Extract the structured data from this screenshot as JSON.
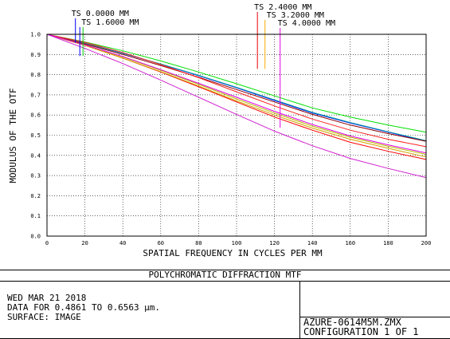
{
  "chart_data": {
    "type": "line",
    "title": "POLYCHROMATIC DIFFRACTION MTF",
    "xlabel": "SPATIAL FREQUENCY IN CYCLES PER MM",
    "ylabel": "MODULUS OF THE OTF",
    "xlim": [
      0,
      200
    ],
    "ylim": [
      0,
      1
    ],
    "xticks": [
      "0",
      "20",
      "40",
      "60",
      "80",
      "100",
      "120",
      "140",
      "160",
      "180",
      "200"
    ],
    "yticks": [
      "0.0",
      "0.1",
      "0.2",
      "0.3",
      "0.4",
      "0.5",
      "0.6",
      "0.7",
      "0.8",
      "0.9",
      "1.0"
    ],
    "grid": true,
    "fields": [
      {
        "name": "TS 0.0000 MM",
        "color": "#0000ff",
        "marker_x": 15
      },
      {
        "name": "TS 1.6000 MM",
        "color": "#00c800",
        "marker_x": 19
      },
      {
        "name": "TS 2.4000 MM",
        "color": "#e60000",
        "marker_x": 111
      },
      {
        "name": "TS 3.2000 MM",
        "color": "#ffaa00",
        "marker_x": 115
      },
      {
        "name": "TS 4.0000 MM",
        "color": "#e000e0",
        "marker_x": 123
      }
    ],
    "x": [
      0,
      20,
      40,
      60,
      80,
      100,
      120,
      140,
      160,
      180,
      200
    ],
    "series": [
      {
        "color": "#0000ff",
        "values": [
          1.0,
          0.955,
          0.905,
          0.852,
          0.795,
          0.735,
          0.672,
          0.61,
          0.56,
          0.515,
          0.47
        ]
      },
      {
        "color": "#00a0a0",
        "values": [
          1.0,
          0.955,
          0.906,
          0.853,
          0.797,
          0.737,
          0.675,
          0.613,
          0.563,
          0.517,
          0.473
        ]
      },
      {
        "color": "#00e000",
        "values": [
          1.0,
          0.962,
          0.918,
          0.868,
          0.813,
          0.755,
          0.695,
          0.635,
          0.59,
          0.55,
          0.515
        ]
      },
      {
        "color": "#8b0000",
        "values": [
          1.0,
          0.952,
          0.9,
          0.845,
          0.787,
          0.726,
          0.665,
          0.603,
          0.55,
          0.508,
          0.47
        ]
      },
      {
        "color": "#ff0000",
        "values": [
          1.0,
          0.945,
          0.882,
          0.813,
          0.74,
          0.665,
          0.59,
          0.525,
          0.465,
          0.42,
          0.38
        ]
      },
      {
        "color": "#ff2020",
        "values": [
          1.0,
          0.96,
          0.91,
          0.85,
          0.785,
          0.715,
          0.645,
          0.58,
          0.525,
          0.48,
          0.443
        ]
      },
      {
        "color": "#d4a000",
        "values": [
          1.0,
          0.945,
          0.882,
          0.815,
          0.744,
          0.67,
          0.6,
          0.535,
          0.48,
          0.435,
          0.392
        ]
      },
      {
        "color": "#b8b800",
        "values": [
          1.0,
          0.948,
          0.888,
          0.822,
          0.752,
          0.68,
          0.61,
          0.545,
          0.49,
          0.445,
          0.405
        ]
      },
      {
        "color": "#e000e0",
        "values": [
          1.0,
          0.948,
          0.89,
          0.825,
          0.757,
          0.688,
          0.618,
          0.553,
          0.496,
          0.452,
          0.412
        ]
      },
      {
        "color": "#d020d0",
        "values": [
          1.0,
          0.93,
          0.855,
          0.773,
          0.688,
          0.603,
          0.52,
          0.448,
          0.385,
          0.335,
          0.29
        ]
      }
    ]
  },
  "info": {
    "date": "WED MAR 21 2018",
    "data_range": "DATA FOR 0.4861 TO 0.6563 µm.",
    "surface": "SURFACE: IMAGE",
    "file": "AZURE-0614M5M.ZMX",
    "configuration": "CONFIGURATION 1 OF 1"
  }
}
